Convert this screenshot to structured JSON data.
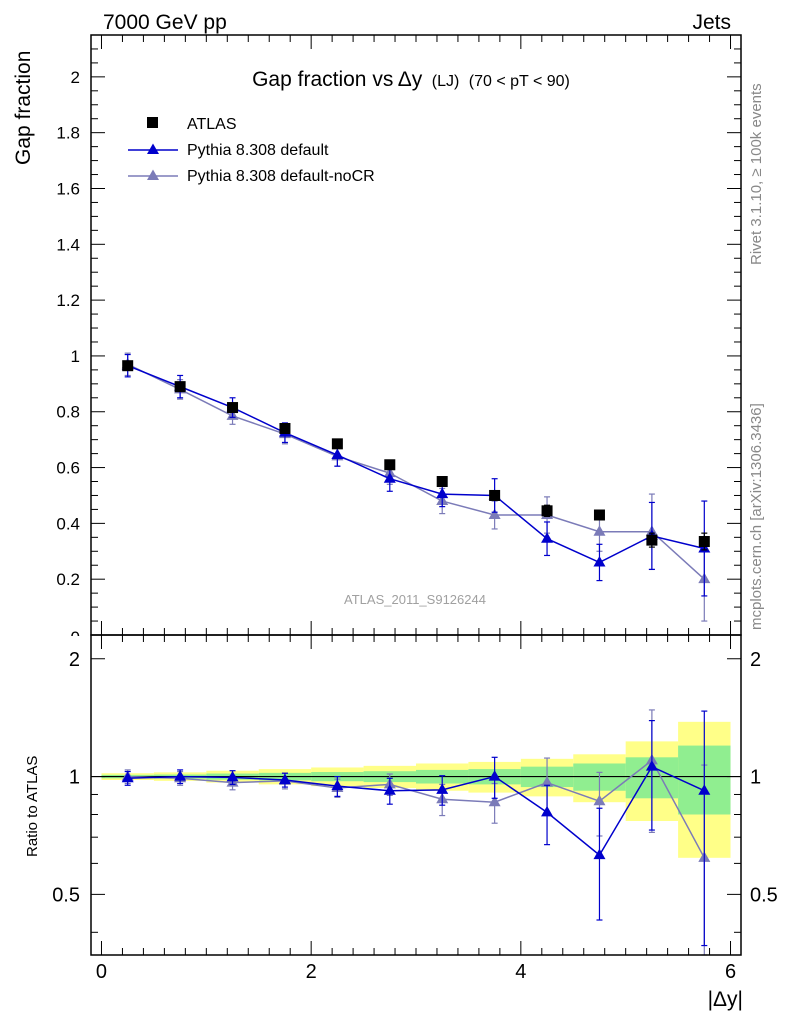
{
  "header": {
    "left_label": "7000 GeV pp",
    "right_label": "Jets"
  },
  "side_labels": {
    "rivet": "Rivet 3.1.10, ≥ 100k events",
    "mcplots": "mcplots.cern.ch [arXiv:1306.3436]"
  },
  "chart_data": [
    {
      "type": "scatter",
      "title": "Gap fraction vs Δy (LJ) (70 < pT < 90)",
      "title_parts": {
        "main": "Gap fraction vs",
        "delta": "Δy",
        "sub1": "(LJ)",
        "sub2": "(70 < pT <  90)"
      },
      "ylabel": "Gap fraction",
      "watermark": "ATLAS_2011_S9126244",
      "xlim": [
        -0.1,
        6.1
      ],
      "ylim": [
        0,
        2.15
      ],
      "yticks": [
        0.2,
        0.4,
        0.6,
        0.8,
        1,
        1.2,
        1.4,
        1.6,
        1.8,
        2
      ],
      "ytick_labels": [
        "0.2",
        "0.4",
        "0.6",
        "0.8",
        "1",
        "1.2",
        "1.4",
        "1.6",
        "1.8",
        "2"
      ],
      "bottom_tick_label": "0",
      "legend_position": "top-left",
      "x": [
        0.25,
        0.75,
        1.25,
        1.75,
        2.25,
        2.75,
        3.25,
        3.75,
        4.25,
        4.75,
        5.25,
        5.75
      ],
      "series": [
        {
          "name": "ATLAS",
          "color": "#000000",
          "marker": "square",
          "values": [
            0.965,
            0.89,
            0.815,
            0.74,
            0.685,
            0.61,
            0.55,
            0.5,
            0.445,
            0.43,
            0.34,
            0.335
          ],
          "errors": [
            0.01,
            0.01,
            0.01,
            0.01,
            0.01,
            0.01,
            0.01,
            0.01,
            0.02,
            0.015,
            0.025,
            0.03
          ]
        },
        {
          "name": "Pythia 8.308 default",
          "color": "#0000cc",
          "marker": "triangle",
          "values": [
            0.965,
            0.89,
            0.815,
            0.725,
            0.645,
            0.56,
            0.505,
            0.5,
            0.345,
            0.26,
            0.355,
            0.31
          ],
          "errors": [
            0.04,
            0.04,
            0.035,
            0.035,
            0.04,
            0.045,
            0.045,
            0.06,
            0.06,
            0.065,
            0.12,
            0.17
          ]
        },
        {
          "name": "Pythia 8.308 default-noCR",
          "color": "#7b7bb8",
          "marker": "triangle",
          "values": [
            0.97,
            0.88,
            0.785,
            0.72,
            0.64,
            0.58,
            0.48,
            0.43,
            0.43,
            0.37,
            0.37,
            0.2
          ],
          "errors": [
            0.04,
            0.035,
            0.03,
            0.035,
            0.035,
            0.04,
            0.045,
            0.05,
            0.065,
            0.07,
            0.135,
            0.15
          ]
        }
      ]
    },
    {
      "type": "scatter",
      "ylabel": "Ratio to ATLAS",
      "xlabel": "|Δy|",
      "xlim": [
        -0.1,
        6.1
      ],
      "ylim": [
        0.35,
        2.3
      ],
      "y_scale": "log",
      "xticks": [
        0,
        2,
        4,
        6
      ],
      "xtick_labels": [
        "0",
        "2",
        "4",
        "6"
      ],
      "yticks": [
        0.5,
        1,
        2
      ],
      "ytick_labels": [
        "0.5",
        "1",
        "2"
      ],
      "x": [
        0.25,
        0.75,
        1.25,
        1.75,
        2.25,
        2.75,
        3.25,
        3.75,
        4.25,
        4.75,
        5.25,
        5.75
      ],
      "bands": {
        "yellow": [
          0.02,
          0.025,
          0.035,
          0.045,
          0.055,
          0.065,
          0.08,
          0.09,
          0.11,
          0.14,
          0.23,
          0.38
        ],
        "green": [
          0.01,
          0.012,
          0.018,
          0.022,
          0.027,
          0.032,
          0.04,
          0.045,
          0.06,
          0.08,
          0.12,
          0.2
        ],
        "yellow_color": "#ffff88",
        "green_color": "#90ee90"
      },
      "series": [
        {
          "name": "Pythia 8.308 default",
          "color": "#0000cc",
          "marker": "triangle",
          "values": [
            0.99,
            1.0,
            0.995,
            0.98,
            0.945,
            0.92,
            0.925,
            1.0,
            0.81,
            0.63,
            1.06,
            0.92
          ],
          "errors": [
            0.04,
            0.04,
            0.04,
            0.04,
            0.055,
            0.07,
            0.08,
            0.12,
            0.14,
            0.2,
            0.33,
            0.55
          ]
        },
        {
          "name": "Pythia 8.308 default-noCR",
          "color": "#7b7bb8",
          "marker": "triangle",
          "values": [
            1.0,
            0.99,
            0.965,
            0.975,
            0.935,
            0.955,
            0.875,
            0.86,
            0.965,
            0.865,
            1.1,
            0.62
          ],
          "errors": [
            0.04,
            0.04,
            0.04,
            0.045,
            0.05,
            0.06,
            0.08,
            0.1,
            0.15,
            0.16,
            0.38,
            0.45
          ]
        }
      ]
    }
  ]
}
